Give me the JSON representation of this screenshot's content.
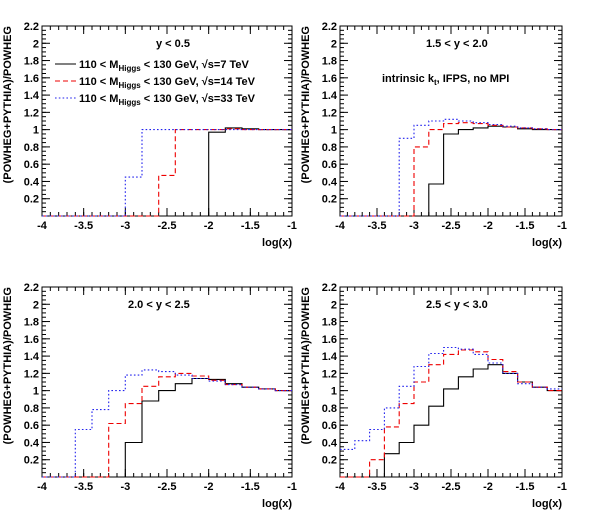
{
  "chart_data": [
    {
      "type": "line",
      "step": true,
      "title": "",
      "annotation": "y < 0.5",
      "xlabel": "log(x)",
      "ylabel": "(POWHEG+PYTHIA)/POWHEG",
      "xlim": [
        -4,
        -1
      ],
      "ylim": [
        0,
        2.2
      ],
      "xticks": [
        "-4",
        "-3.5",
        "-3",
        "-2.5",
        "-2",
        "-1.5",
        "-1"
      ],
      "yticks": [
        "0.2",
        "0.4",
        "0.6",
        "0.8",
        "1",
        "1.2",
        "1.4",
        "1.6",
        "1.8",
        "2",
        "2.2"
      ],
      "legend": {
        "placement": "top-left",
        "entries": [
          {
            "prefix": "110 < M",
            "sub": "Higgs",
            "suffix": " < 130 GeV,  √s=7 TeV",
            "color": "#000000",
            "dash": "solid"
          },
          {
            "prefix": "110 < M",
            "sub": "Higgs",
            "suffix": " < 130 GeV,  √s=14 TeV",
            "color": "#ee0000",
            "dash": "dashed"
          },
          {
            "prefix": "110 < M",
            "sub": "Higgs",
            "suffix": " < 130 GeV,  √s=33 TeV",
            "color": "#2222ee",
            "dash": "dotted"
          }
        ]
      },
      "bin_edges": [
        -4,
        -3.8,
        -3.6,
        -3.4,
        -3.2,
        -3,
        -2.8,
        -2.6,
        -2.4,
        -2.2,
        -2,
        -1.8,
        -1.6,
        -1.4,
        -1.2,
        -1
      ],
      "series": [
        {
          "name": "√s=7 TeV",
          "color": "#000000",
          "dash": "solid",
          "values": [
            0,
            0,
            0,
            0,
            0,
            0,
            0,
            0,
            0,
            0,
            0.97,
            1.02,
            1.01,
            1.0,
            1.0
          ]
        },
        {
          "name": "√s=14 TeV",
          "color": "#ee0000",
          "dash": "dashed",
          "values": [
            0,
            0,
            0,
            0,
            0,
            0,
            0,
            0.47,
            1.0,
            1.0,
            1.0,
            1.01,
            1.0,
            1.0,
            1.0
          ]
        },
        {
          "name": "√s=33 TeV",
          "color": "#2222ee",
          "dash": "dotted",
          "values": [
            0,
            0,
            0,
            0,
            0,
            0.45,
            1.0,
            1.0,
            1.0,
            1.0,
            1.0,
            1.0,
            1.0,
            1.0,
            1.0
          ]
        }
      ]
    },
    {
      "type": "line",
      "step": true,
      "title": "",
      "annotation": "1.5 < y < 2.0",
      "annotation2": {
        "prefix": "intrinsic k",
        "sub": "t",
        "suffix": ", IFPS, no MPI"
      },
      "xlabel": "log(x)",
      "ylabel": "(POWHEG+PYTHIA)/POWHEG",
      "xlim": [
        -4,
        -1
      ],
      "ylim": [
        0,
        2.2
      ],
      "xticks": [
        "-4",
        "-3.5",
        "-3",
        "-2.5",
        "-2",
        "-1.5",
        "-1"
      ],
      "yticks": [
        "0.2",
        "0.4",
        "0.6",
        "0.8",
        "1",
        "1.2",
        "1.4",
        "1.6",
        "1.8",
        "2",
        "2.2"
      ],
      "bin_edges": [
        -4,
        -3.8,
        -3.6,
        -3.4,
        -3.2,
        -3,
        -2.8,
        -2.6,
        -2.4,
        -2.2,
        -2,
        -1.8,
        -1.6,
        -1.4,
        -1.2,
        -1
      ],
      "series": [
        {
          "name": "√s=7 TeV",
          "color": "#000000",
          "dash": "solid",
          "values": [
            0,
            0,
            0,
            0,
            0,
            0,
            0.37,
            0.95,
            1.0,
            1.02,
            1.04,
            1.03,
            1.01,
            1.0,
            1.0
          ]
        },
        {
          "name": "√s=14 TeV",
          "color": "#ee0000",
          "dash": "dashed",
          "values": [
            0,
            0,
            0,
            0,
            0,
            0.8,
            1.0,
            1.07,
            1.08,
            1.07,
            1.05,
            1.03,
            1.02,
            1.01,
            1.0
          ]
        },
        {
          "name": "√s=33 TeV",
          "color": "#2222ee",
          "dash": "dotted",
          "values": [
            0,
            0,
            0,
            0,
            0.9,
            1.05,
            1.1,
            1.12,
            1.1,
            1.08,
            1.06,
            1.04,
            1.02,
            1.01,
            1.0
          ]
        }
      ]
    },
    {
      "type": "line",
      "step": true,
      "title": "",
      "annotation": "2.0 < y < 2.5",
      "xlabel": "log(x)",
      "ylabel": "(POWHEG+PYTHIA)/POWHEG",
      "xlim": [
        -4,
        -1
      ],
      "ylim": [
        0,
        2.2
      ],
      "xticks": [
        "-4",
        "-3.5",
        "-3",
        "-2.5",
        "-2",
        "-1.5",
        "-1"
      ],
      "yticks": [
        "0.2",
        "0.4",
        "0.6",
        "0.8",
        "1",
        "1.2",
        "1.4",
        "1.6",
        "1.8",
        "2",
        "2.2"
      ],
      "bin_edges": [
        -4,
        -3.8,
        -3.6,
        -3.4,
        -3.2,
        -3,
        -2.8,
        -2.6,
        -2.4,
        -2.2,
        -2,
        -1.8,
        -1.6,
        -1.4,
        -1.2,
        -1
      ],
      "series": [
        {
          "name": "√s=7 TeV",
          "color": "#000000",
          "dash": "solid",
          "values": [
            0,
            0,
            0,
            0,
            0,
            0.4,
            0.88,
            1.0,
            1.08,
            1.14,
            1.13,
            1.08,
            1.04,
            1.02,
            1.0
          ]
        },
        {
          "name": "√s=14 TeV",
          "color": "#ee0000",
          "dash": "dashed",
          "values": [
            0,
            0,
            0,
            0,
            0.62,
            0.85,
            1.05,
            1.16,
            1.2,
            1.17,
            1.12,
            1.07,
            1.04,
            1.02,
            1.0
          ]
        },
        {
          "name": "√s=33 TeV",
          "color": "#2222ee",
          "dash": "dotted",
          "values": [
            0,
            0,
            0.55,
            0.78,
            1.0,
            1.18,
            1.24,
            1.22,
            1.18,
            1.14,
            1.11,
            1.07,
            1.04,
            1.02,
            1.0
          ]
        }
      ]
    },
    {
      "type": "line",
      "step": true,
      "title": "",
      "annotation": "2.5 < y < 3.0",
      "xlabel": "log(x)",
      "ylabel": "(POWHEG+PYTHIA)/POWHEG",
      "xlim": [
        -4,
        -1
      ],
      "ylim": [
        0,
        2.2
      ],
      "xticks": [
        "-4",
        "-3.5",
        "-3",
        "-2.5",
        "-2",
        "-1.5",
        "-1"
      ],
      "yticks": [
        "0.2",
        "0.4",
        "0.6",
        "0.8",
        "1",
        "1.2",
        "1.4",
        "1.6",
        "1.8",
        "2",
        "2.2"
      ],
      "bin_edges": [
        -4,
        -3.8,
        -3.6,
        -3.4,
        -3.2,
        -3,
        -2.8,
        -2.6,
        -2.4,
        -2.2,
        -2,
        -1.8,
        -1.6,
        -1.4,
        -1.2,
        -1
      ],
      "series": [
        {
          "name": "√s=7 TeV",
          "color": "#000000",
          "dash": "solid",
          "values": [
            0,
            0,
            0,
            0.27,
            0.4,
            0.6,
            0.82,
            1.02,
            1.16,
            1.25,
            1.3,
            1.2,
            1.1,
            1.04,
            1.0
          ]
        },
        {
          "name": "√s=14 TeV",
          "color": "#ee0000",
          "dash": "dashed",
          "values": [
            0,
            0,
            0.2,
            0.58,
            0.85,
            1.1,
            1.3,
            1.42,
            1.47,
            1.45,
            1.36,
            1.22,
            1.1,
            1.04,
            1.0
          ]
        },
        {
          "name": "√s=33 TeV",
          "color": "#2222ee",
          "dash": "dotted",
          "values": [
            0.32,
            0.42,
            0.55,
            0.8,
            1.05,
            1.28,
            1.43,
            1.5,
            1.48,
            1.42,
            1.32,
            1.2,
            1.08,
            1.04,
            1.02
          ]
        }
      ]
    }
  ]
}
